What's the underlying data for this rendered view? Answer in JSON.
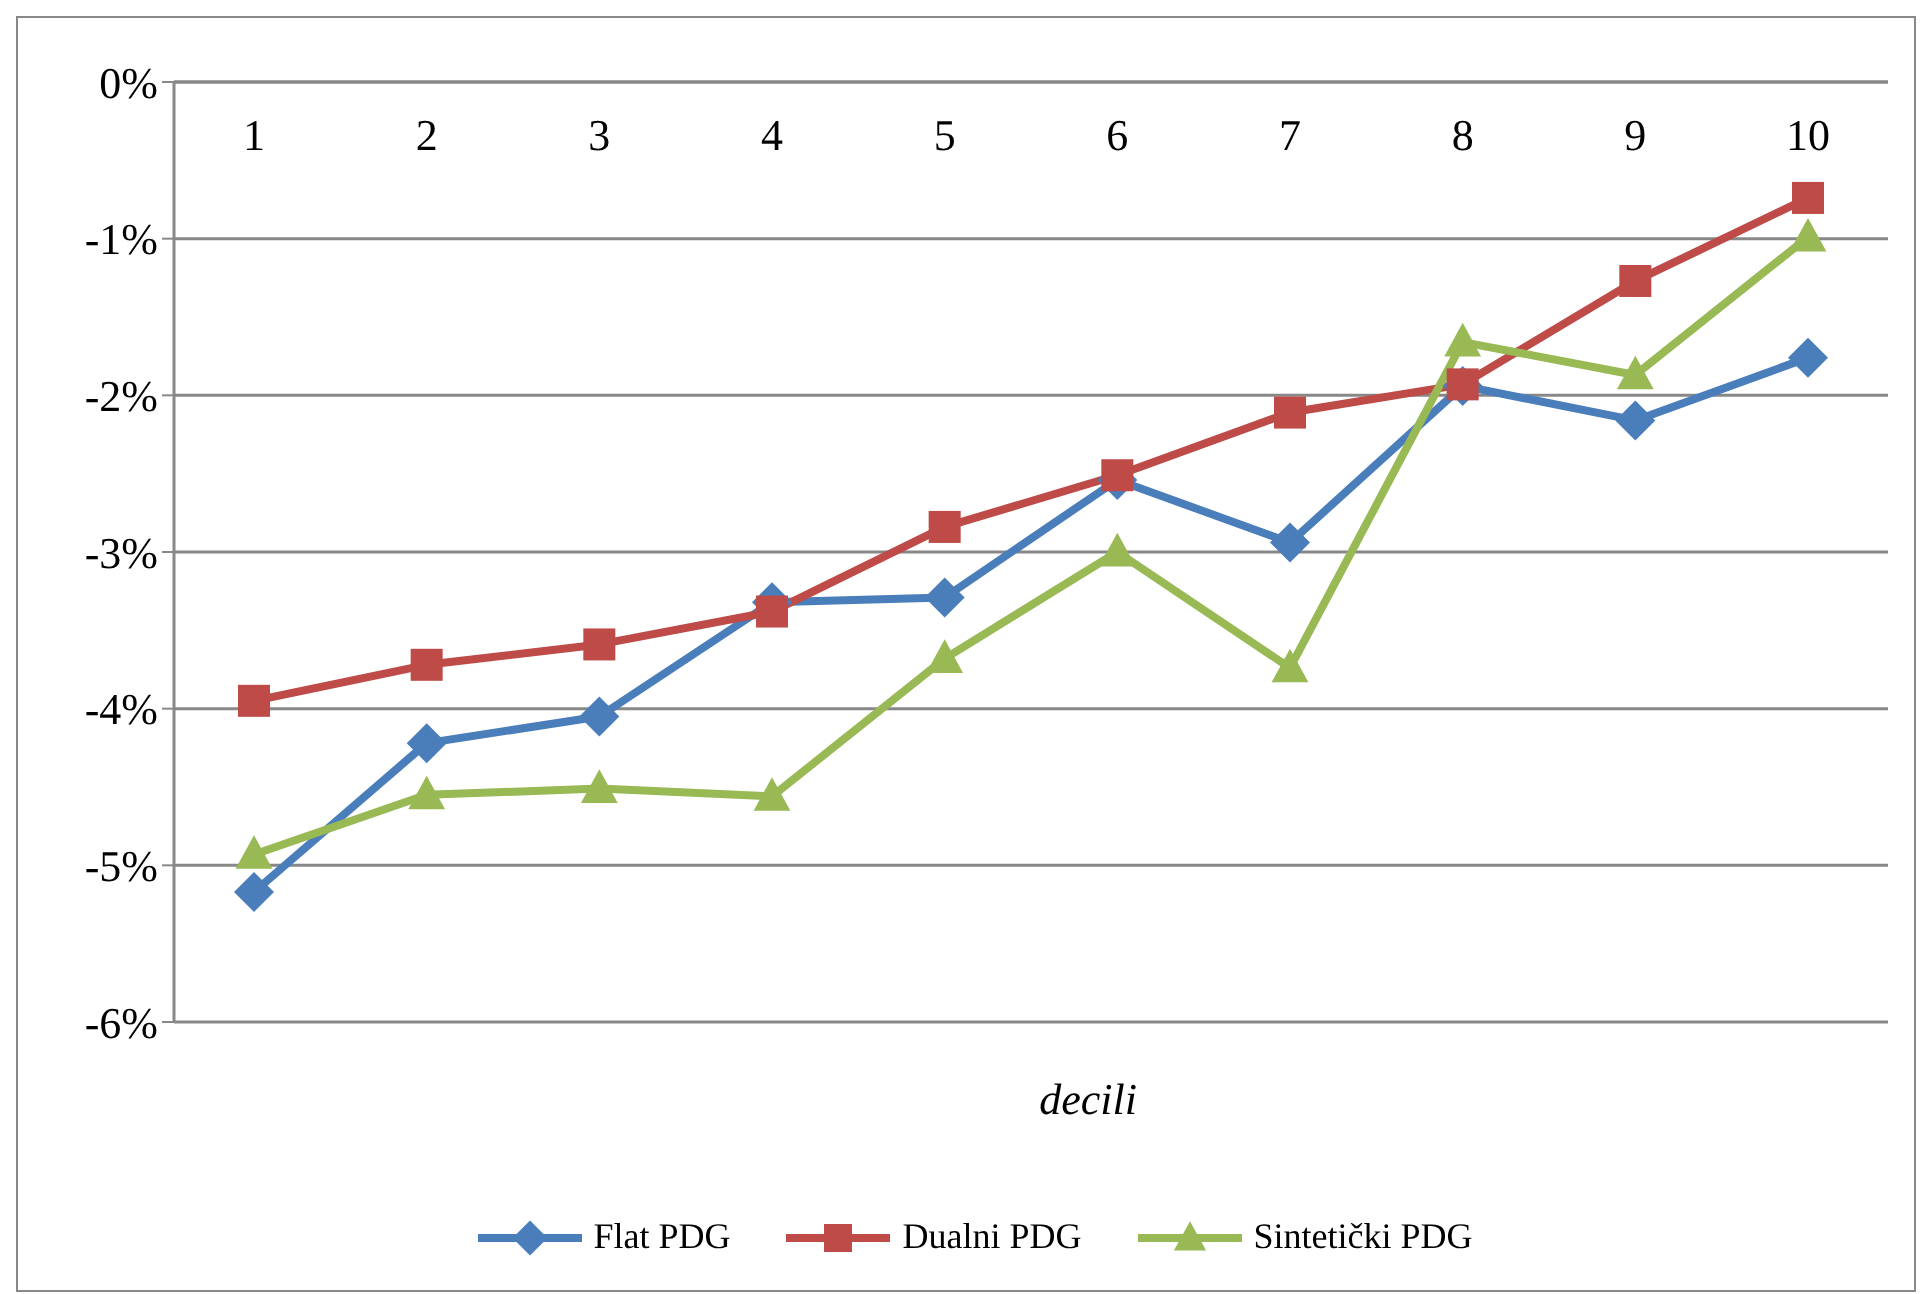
{
  "chart_data": {
    "type": "line",
    "xlabel": "decili",
    "categories": [
      "1",
      "2",
      "3",
      "4",
      "5",
      "6",
      "7",
      "8",
      "9",
      "10"
    ],
    "series": [
      {
        "name": "Flat PDG",
        "color": "#4a7ebb",
        "marker": "diamond",
        "values": [
          -5.17,
          -4.22,
          -4.05,
          -3.32,
          -3.29,
          -2.54,
          -2.94,
          -1.94,
          -2.16,
          -1.76
        ]
      },
      {
        "name": "Dualni PDG",
        "color": "#be4b48",
        "marker": "square",
        "values": [
          -3.95,
          -3.72,
          -3.59,
          -3.38,
          -2.84,
          -2.51,
          -2.11,
          -1.93,
          -1.27,
          -0.74
        ]
      },
      {
        "name": "Sintetički PDG",
        "color": "#98b954",
        "marker": "triangle",
        "values": [
          -4.93,
          -4.55,
          -4.51,
          -4.56,
          -3.68,
          -3.0,
          -3.74,
          -1.66,
          -1.87,
          -0.99
        ]
      }
    ],
    "ylim": [
      -6,
      0
    ],
    "yticks": [
      {
        "value": -6,
        "label": "-6%"
      },
      {
        "value": -5,
        "label": "-5%"
      },
      {
        "value": -4,
        "label": "-4%"
      },
      {
        "value": -3,
        "label": "-3%"
      },
      {
        "value": -2,
        "label": "-2%"
      },
      {
        "value": -1,
        "label": "-1%"
      },
      {
        "value": 0,
        "label": "0%"
      }
    ],
    "grid": "y",
    "legend": "bottom",
    "line_style": "solid"
  }
}
